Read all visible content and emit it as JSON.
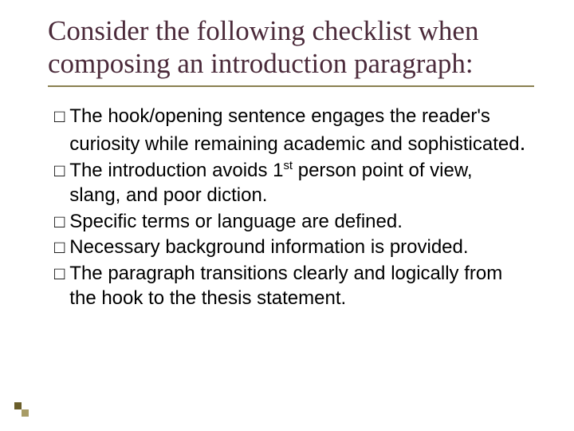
{
  "colors": {
    "title_color": "#4b2a3a",
    "underline_color": "#8a8050",
    "body_text_color": "#000000",
    "background": "#ffffff",
    "accent_dark": "#6a5e2a",
    "accent_light": "#a89c66"
  },
  "typography": {
    "title_font": "Times New Roman",
    "title_fontsize_pt": 28,
    "body_font": "Arial",
    "body_fontsize_pt": 20
  },
  "title": "Consider the following checklist when composing an introduction paragraph:",
  "checkbox_glyph": "□",
  "checklist": [
    {
      "text_pre": "The hook/opening sentence engages the reader's curiosity while remaining academic and sophisticated",
      "sup": "",
      "text_post": "",
      "tail": "."
    },
    {
      "text_pre": "The introduction avoids 1",
      "sup": "st",
      "text_post": " person point of view, slang, and poor diction.",
      "tail": ""
    },
    {
      "text_pre": "Specific terms or language are defined.",
      "sup": "",
      "text_post": "",
      "tail": ""
    },
    {
      "text_pre": "Necessary background information is provided.",
      "sup": "",
      "text_post": "",
      "tail": ""
    },
    {
      "text_pre": "The paragraph transitions clearly and logically from the hook to the thesis statement.",
      "sup": "",
      "text_post": "",
      "tail": ""
    }
  ]
}
